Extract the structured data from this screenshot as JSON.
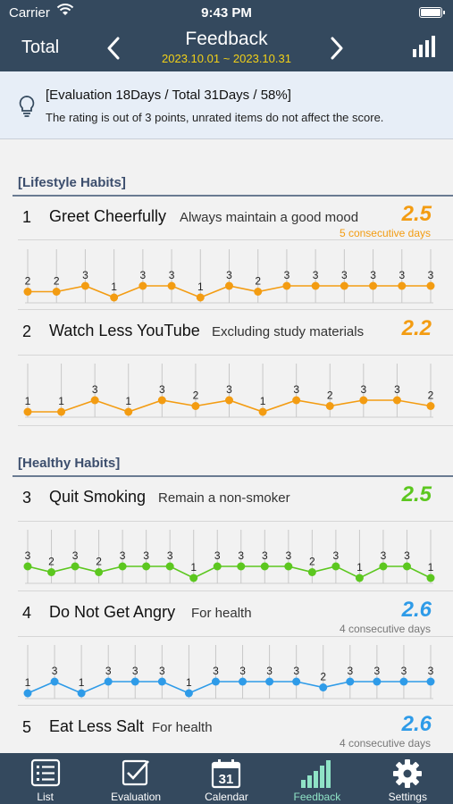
{
  "status_bar": {
    "carrier": "Carrier",
    "time": "9:43 PM"
  },
  "nav": {
    "left_label": "Total",
    "title": "Feedback",
    "date_range": "2023.10.01 ~ 2023.10.31"
  },
  "info": {
    "line1": "[Evaluation 18Days / Total 31Days / 58%]",
    "line2": "The rating is out of 3 points, unrated items do not affect the score."
  },
  "sections": [
    {
      "title": "[Lifestyle Habits]"
    },
    {
      "title": "[Healthy Habits]"
    }
  ],
  "habits": [
    {
      "num": "1",
      "name": "Greet Cheerfully",
      "desc": "Always maintain a good mood",
      "score": "2.5",
      "streak": "5 consecutive days",
      "color": "#f39c12",
      "streak_color": "#f39c12",
      "ratings": [
        2,
        2,
        3,
        1,
        3,
        3,
        1,
        3,
        2,
        3,
        3,
        3,
        3,
        3,
        3
      ]
    },
    {
      "num": "2",
      "name": "Watch Less YouTube",
      "desc": "Excluding study materials",
      "score": "2.2",
      "streak": "",
      "color": "#f39c12",
      "streak_color": "#f39c12",
      "ratings": [
        1,
        1,
        3,
        1,
        3,
        2,
        3,
        1,
        3,
        2,
        3,
        3,
        2
      ]
    },
    {
      "num": "3",
      "name": "Quit Smoking",
      "desc": "Remain a non-smoker",
      "score": "2.5",
      "streak": "",
      "color": "#5cc71f",
      "streak_color": "#5cc71f",
      "ratings": [
        3,
        2,
        3,
        2,
        3,
        3,
        3,
        1,
        3,
        3,
        3,
        3,
        2,
        3,
        1,
        3,
        3,
        1
      ]
    },
    {
      "num": "4",
      "name": "Do Not Get Angry",
      "desc": "For health",
      "score": "2.6",
      "streak": "4 consecutive days",
      "color": "#2e9be8",
      "streak_color": "#777777",
      "ratings": [
        1,
        3,
        1,
        3,
        3,
        3,
        1,
        3,
        3,
        3,
        3,
        2,
        3,
        3,
        3,
        3
      ]
    },
    {
      "num": "5",
      "name": "Eat Less Salt",
      "desc": "For health",
      "score": "2.6",
      "streak": "4 consecutive days",
      "color": "#2e9be8",
      "streak_color": "#777777",
      "ratings": []
    }
  ],
  "tabs": [
    {
      "label": "List",
      "icon": "list-icon"
    },
    {
      "label": "Evaluation",
      "icon": "checkbox-icon"
    },
    {
      "label": "Calendar",
      "icon": "calendar-icon"
    },
    {
      "label": "Feedback",
      "icon": "bar-chart-icon"
    },
    {
      "label": "Settings",
      "icon": "gear-icon"
    }
  ],
  "calendar_day": "31",
  "active_tab": "Feedback"
}
